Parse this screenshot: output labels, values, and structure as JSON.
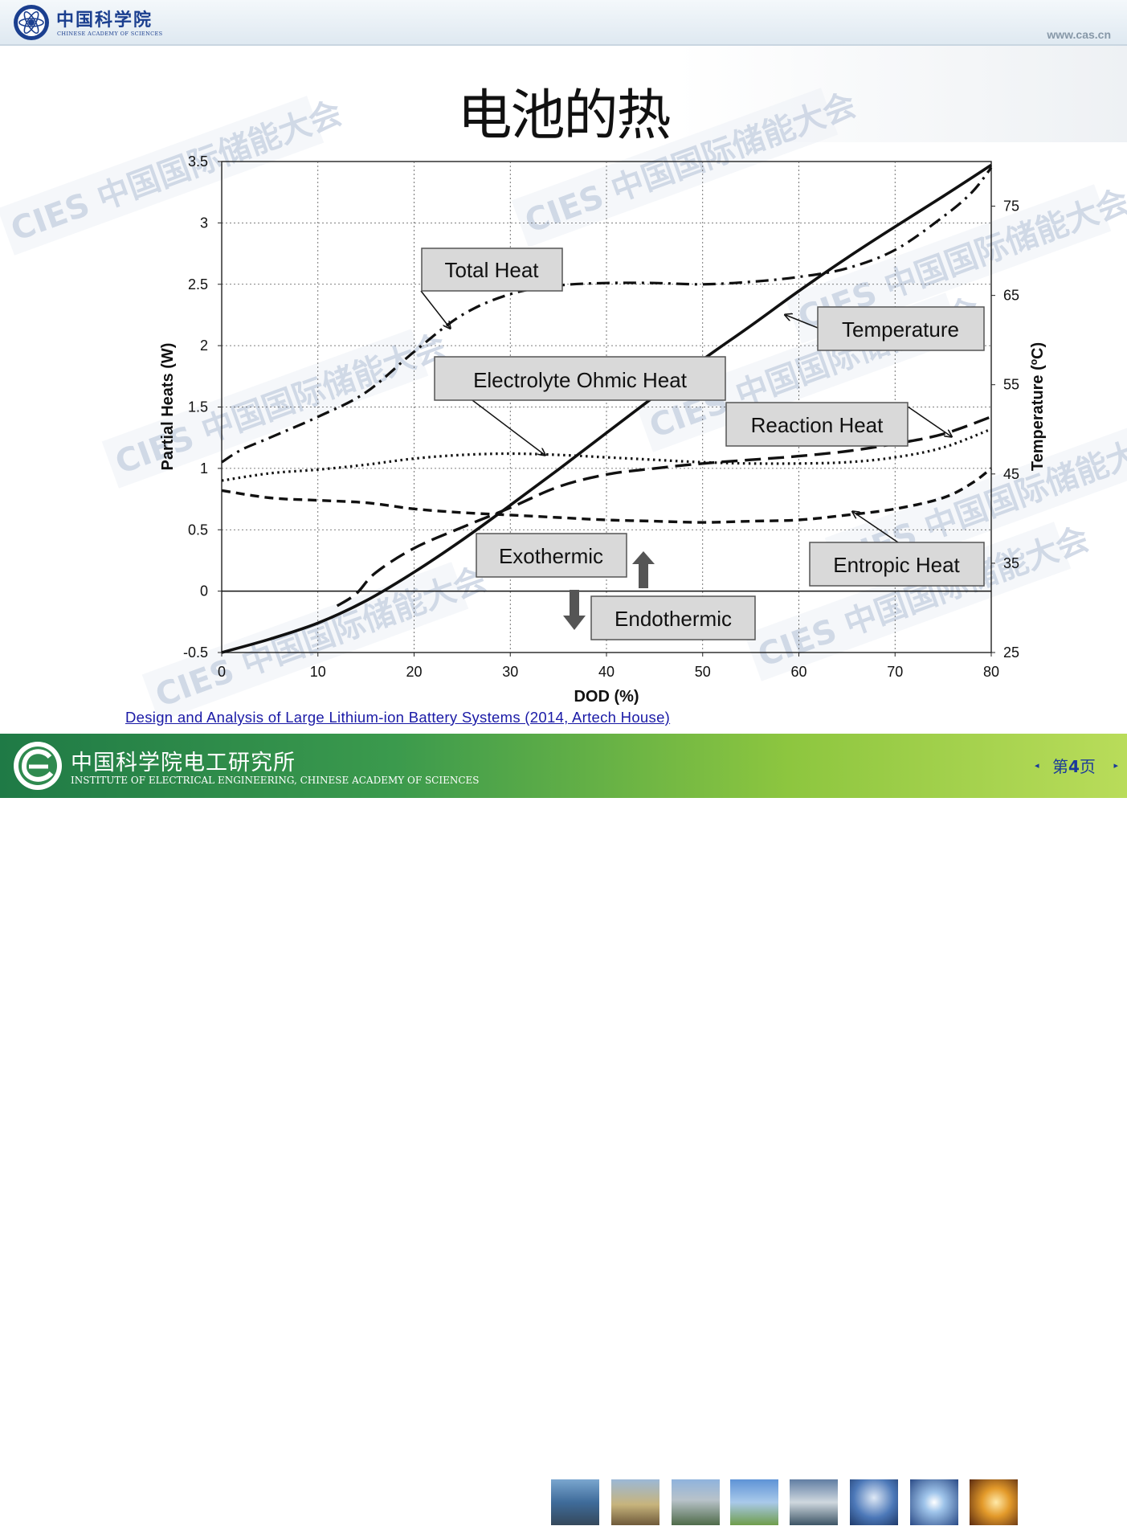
{
  "header": {
    "org_cn": "中国科学院",
    "org_en": "CHINESE ACADEMY OF SCIENCES",
    "url": "www.cas.cn"
  },
  "slide": {
    "title": "电池的热",
    "source": "Design and Analysis of Large Lithium-ion Battery Systems (2014, Artech House)"
  },
  "watermark": "CIES 中国国际储能大会",
  "footer": {
    "institute_cn": "中国科学院电工研究所",
    "institute_en": "INSTITUTE OF ELECTRICAL ENGINEERING, CHINESE ACADEMY OF SCIENCES",
    "page_prefix": "第",
    "page_number": "4",
    "page_suffix": "页",
    "prev_glyph": "◂",
    "next_glyph": "▸"
  },
  "chart_data": {
    "type": "line",
    "title": "",
    "xlabel": "DOD (%)",
    "ylabel": "Partial Heats (W)",
    "y2label": "Temperature (ºC)",
    "xlim": [
      0,
      80
    ],
    "ylim": [
      -0.5,
      3.5
    ],
    "y2lim": [
      25,
      80
    ],
    "x_ticks": [
      0,
      10,
      20,
      30,
      40,
      50,
      60,
      70,
      80
    ],
    "y_ticks": [
      -0.5,
      0,
      0.5,
      1,
      1.5,
      2,
      2.5,
      3,
      3.5
    ],
    "y_tick_labels": [
      "-0.5",
      "0",
      "0.5",
      "1",
      "1.5",
      "2",
      "2.5",
      "3",
      "3.5"
    ],
    "y2_ticks": [
      25,
      35,
      45,
      55,
      65,
      75
    ],
    "grid": true,
    "series": [
      {
        "name": "Total Heat",
        "axis": "left",
        "style": "dashdot",
        "x": [
          0,
          2,
          5,
          10,
          15,
          20,
          25,
          30,
          35,
          40,
          45,
          50,
          55,
          60,
          65,
          70,
          75,
          78,
          80
        ],
        "y": [
          1.05,
          1.15,
          1.25,
          1.42,
          1.62,
          1.95,
          2.25,
          2.42,
          2.49,
          2.51,
          2.51,
          2.5,
          2.52,
          2.56,
          2.63,
          2.78,
          3.05,
          3.25,
          3.45
        ]
      },
      {
        "name": "Temperature",
        "axis": "right",
        "style": "solid",
        "x": [
          0,
          5,
          10,
          15,
          20,
          25,
          30,
          35,
          40,
          45,
          50,
          55,
          60,
          65,
          70,
          75,
          80
        ],
        "y": [
          25,
          26.5,
          28.3,
          30.8,
          34,
          37.6,
          41.5,
          45.5,
          49.6,
          53.7,
          57.8,
          61.6,
          65.5,
          69.2,
          72.7,
          76.1,
          79.6
        ]
      },
      {
        "name": "Electrolyte Ohmic Heat",
        "axis": "left",
        "style": "dotted",
        "x": [
          0,
          5,
          10,
          15,
          20,
          25,
          30,
          35,
          40,
          45,
          50,
          55,
          60,
          65,
          70,
          75,
          80
        ],
        "y": [
          0.9,
          0.96,
          0.99,
          1.03,
          1.08,
          1.11,
          1.12,
          1.11,
          1.09,
          1.07,
          1.05,
          1.04,
          1.04,
          1.05,
          1.09,
          1.17,
          1.32
        ]
      },
      {
        "name": "Reaction Heat",
        "axis": "left",
        "style": "longdash",
        "x": [
          12,
          14,
          16,
          20,
          25,
          30,
          35,
          40,
          45,
          50,
          55,
          60,
          65,
          70,
          75,
          80
        ],
        "y": [
          -0.12,
          -0.02,
          0.15,
          0.35,
          0.52,
          0.68,
          0.85,
          0.95,
          1.0,
          1.04,
          1.07,
          1.1,
          1.14,
          1.2,
          1.28,
          1.42
        ]
      },
      {
        "name": "Entropic Heat",
        "axis": "left",
        "style": "shortdash",
        "x": [
          0,
          5,
          10,
          15,
          20,
          25,
          30,
          35,
          40,
          45,
          50,
          55,
          60,
          65,
          70,
          75,
          78,
          80
        ],
        "y": [
          0.82,
          0.76,
          0.74,
          0.72,
          0.67,
          0.64,
          0.62,
          0.6,
          0.58,
          0.57,
          0.56,
          0.57,
          0.58,
          0.62,
          0.67,
          0.76,
          0.88,
          1.0
        ]
      }
    ],
    "annotations": {
      "total_heat": "Total Heat",
      "temperature": "Temperature",
      "electrolyte": "Electrolyte Ohmic Heat",
      "reaction": "Reaction Heat",
      "entropic": "Entropic Heat",
      "exothermic": "Exothermic",
      "endothermic": "Endothermic"
    }
  }
}
